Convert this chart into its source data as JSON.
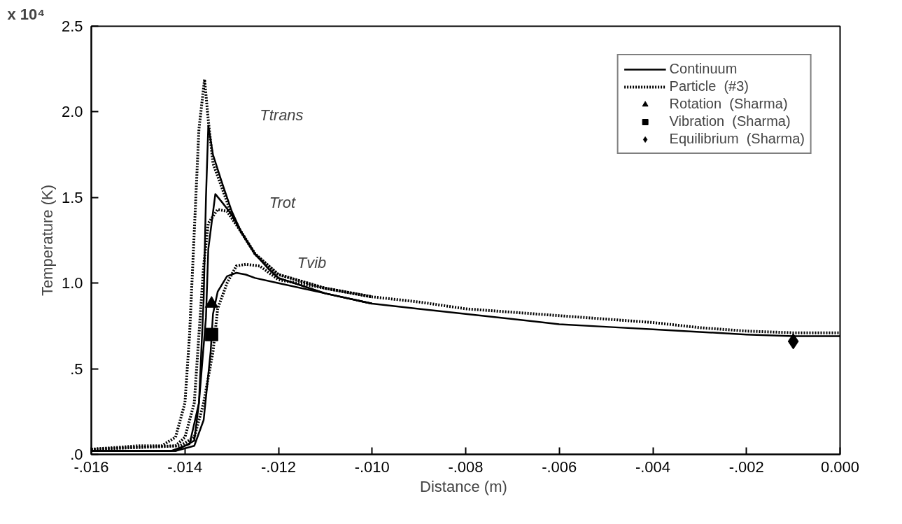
{
  "chart_data": {
    "type": "line",
    "xlabel": "Distance  (m)",
    "ylabel": "Temperature (K)",
    "xlim": [
      -0.016,
      0.0
    ],
    "ylim": [
      0,
      2.5
    ],
    "xticks": [
      {
        "value": -0.016,
        "label": "-.016"
      },
      {
        "value": -0.014,
        "label": "-.014"
      },
      {
        "value": -0.012,
        "label": "-.012"
      },
      {
        "value": -0.01,
        "label": "-.010"
      },
      {
        "value": -0.008,
        "label": "-.008"
      },
      {
        "value": -0.006,
        "label": "-.006"
      },
      {
        "value": -0.004,
        "label": "-.004"
      },
      {
        "value": -0.002,
        "label": "-.002"
      },
      {
        "value": 0.0,
        "label": "0.000"
      }
    ],
    "yticks": [
      {
        "value": 0,
        "label": ".0"
      },
      {
        "value": 0.5,
        "label": ".5"
      },
      {
        "value": 1.0,
        "label": "1.0"
      },
      {
        "value": 1.5,
        "label": "1.5"
      },
      {
        "value": 2.0,
        "label": "2.0"
      },
      {
        "value": 2.5,
        "label": "2.5"
      }
    ],
    "grid": false,
    "legend": "top right",
    "annotations": [
      "x 10⁴",
      "Ttrans",
      "Trot",
      "Tvib"
    ],
    "series": [
      {
        "name": "Continuum",
        "line_style": "solid",
        "color": "#000000",
        "x": [
          -0.016,
          -0.0143,
          -0.0139,
          -0.0137,
          -0.0136,
          -0.01355,
          -0.0135,
          -0.0134,
          -0.0132,
          -0.013,
          -0.0128,
          -0.0125,
          -0.0122,
          -0.012,
          -0.011,
          -0.01,
          -0.009,
          -0.008,
          -0.007,
          -0.006,
          -0.005,
          -0.004,
          -0.003,
          -0.002,
          -0.001,
          0.0
        ],
        "values": [
          0.02,
          0.02,
          0.06,
          0.3,
          0.9,
          1.5,
          1.92,
          1.75,
          1.58,
          1.42,
          1.3,
          1.17,
          1.08,
          1.03,
          0.94,
          0.88,
          0.85,
          0.82,
          0.79,
          0.76,
          0.745,
          0.73,
          0.715,
          0.7,
          0.69,
          0.69
        ]
      },
      {
        "line_style": "solid",
        "color": "#000000",
        "x": [
          -0.016,
          -0.0142,
          -0.0138,
          -0.0137,
          -0.01355,
          -0.0135,
          -0.01335,
          -0.0132,
          -0.013,
          -0.0128,
          -0.0125,
          -0.0122,
          -0.012,
          -0.011,
          -0.01
        ],
        "values": [
          0.02,
          0.02,
          0.08,
          0.3,
          0.8,
          1.2,
          1.52,
          1.47,
          1.4,
          1.3,
          1.17,
          1.08,
          1.03,
          0.94,
          0.88
        ]
      },
      {
        "line_style": "solid",
        "color": "#000000",
        "x": [
          -0.016,
          -0.0142,
          -0.0138,
          -0.0136,
          -0.01345,
          -0.0134,
          -0.0133,
          -0.0131,
          -0.0129,
          -0.0127,
          -0.0125,
          -0.012,
          -0.011,
          -0.01
        ],
        "values": [
          0.02,
          0.02,
          0.05,
          0.2,
          0.6,
          0.82,
          0.95,
          1.04,
          1.06,
          1.05,
          1.03,
          1.0,
          0.94,
          0.88
        ]
      },
      {
        "name": "Particle  (#3)",
        "line_style": "dotted",
        "color": "#000000",
        "x": [
          -0.016,
          -0.0155,
          -0.015,
          -0.0145,
          -0.0142,
          -0.014,
          -0.0139,
          -0.0138,
          -0.0137,
          -0.01358,
          -0.0135,
          -0.0134,
          -0.0132,
          -0.013,
          -0.0128,
          -0.0125,
          -0.012,
          -0.011,
          -0.01,
          -0.009,
          -0.008,
          -0.007,
          -0.006,
          -0.005,
          -0.004,
          -0.003,
          -0.002,
          -0.001,
          0.0
        ],
        "values": [
          0.03,
          0.04,
          0.05,
          0.05,
          0.1,
          0.3,
          0.7,
          1.3,
          1.9,
          2.19,
          1.95,
          1.7,
          1.55,
          1.4,
          1.3,
          1.17,
          1.05,
          0.97,
          0.92,
          0.89,
          0.85,
          0.83,
          0.81,
          0.79,
          0.77,
          0.74,
          0.72,
          0.71,
          0.71
        ]
      },
      {
        "line_style": "dotted",
        "color": "#000000",
        "x": [
          -0.016,
          -0.0142,
          -0.014,
          -0.0138,
          -0.0137,
          -0.0136,
          -0.0135,
          -0.0133,
          -0.0131,
          -0.013,
          -0.0128,
          -0.0125,
          -0.012,
          -0.011,
          -0.01
        ],
        "values": [
          0.03,
          0.05,
          0.1,
          0.3,
          0.7,
          1.1,
          1.35,
          1.43,
          1.42,
          1.38,
          1.3,
          1.17,
          1.05,
          0.97,
          0.92
        ]
      },
      {
        "line_style": "dotted",
        "color": "#000000",
        "x": [
          -0.016,
          -0.0141,
          -0.0138,
          -0.0136,
          -0.0134,
          -0.0133,
          -0.0131,
          -0.0129,
          -0.0127,
          -0.0124,
          -0.0122,
          -0.012,
          -0.011,
          -0.01
        ],
        "values": [
          0.03,
          0.05,
          0.1,
          0.3,
          0.6,
          0.85,
          1.0,
          1.1,
          1.11,
          1.1,
          1.06,
          1.02,
          0.97,
          0.92
        ]
      },
      {
        "name": "Rotation  (Sharma)",
        "type": "scatter",
        "marker": "triangle",
        "color": "#000000",
        "x": [
          -0.01343
        ],
        "values": [
          0.88
        ]
      },
      {
        "name": "Vibration  (Sharma)",
        "type": "scatter",
        "marker": "square",
        "color": "#000000",
        "x": [
          -0.01343
        ],
        "values": [
          0.7
        ]
      },
      {
        "name": "Equilibrium  (Sharma)",
        "type": "scatter",
        "marker": "diamond",
        "color": "#000000",
        "x": [
          -0.001
        ],
        "values": [
          0.66
        ]
      }
    ]
  }
}
